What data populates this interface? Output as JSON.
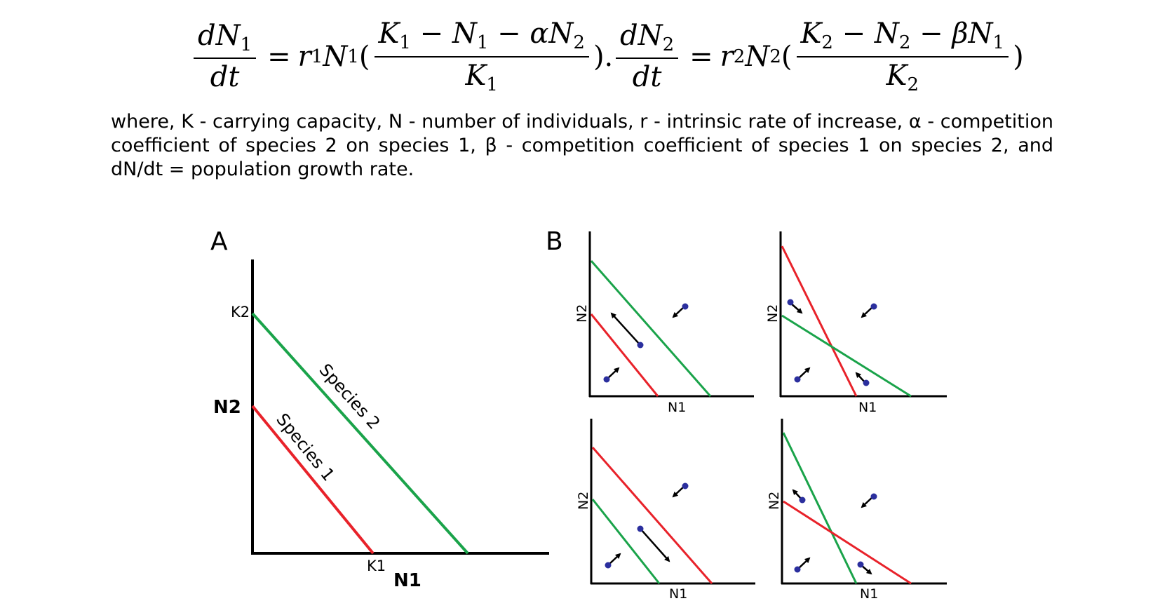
{
  "equations": {
    "eq1": {
      "lhs_num": "dN",
      "lhs_num_sub": "1",
      "lhs_den": "dt",
      "eq_sign": "=",
      "r": "r",
      "r_sub": "1",
      "N": "N",
      "N_sub": "1",
      "open": "(",
      "frac_num": "K",
      "frac_num_sub1": "1",
      "frac_num_mid": " − N",
      "frac_num_sub2": "1",
      "frac_num_mid2": " − αN",
      "frac_num_sub3": "2",
      "frac_den": "K",
      "frac_den_sub": "1",
      "close": ")."
    },
    "eq2": {
      "lhs_num": "dN",
      "lhs_num_sub": "2",
      "lhs_den": "dt",
      "eq_sign": "=",
      "r": "r",
      "r_sub": "2",
      "N": "N",
      "N_sub": "2",
      "open": "(",
      "frac_num": "K",
      "frac_num_sub1": "2",
      "frac_num_mid": " − N",
      "frac_num_sub2": "2",
      "frac_num_mid2": " − βN",
      "frac_num_sub3": "1",
      "frac_den": "K",
      "frac_den_sub": "2",
      "close": ")"
    }
  },
  "description": "where, K - carrying capacity, N - number of individuals, r - intrinsic rate of increase, α - competition coefficient of species 2 on species 1, β - competition coefficient of species 1 on species 2, and dN/dt = population growth rate.",
  "panel_a": {
    "label": "A",
    "x_axis_label": "N1",
    "y_axis_label": "N2",
    "k1_label": "K1",
    "k2_label": "K2",
    "species1_label": "Species 1",
    "species2_label": "Species 2"
  },
  "panel_b": {
    "label": "B",
    "x_axis_label": "N1",
    "y_axis_label": "N2"
  },
  "colors": {
    "species1": "#e8222a",
    "species2": "#1aa34a",
    "point": "#2b2f9e",
    "axis": "#000000"
  }
}
